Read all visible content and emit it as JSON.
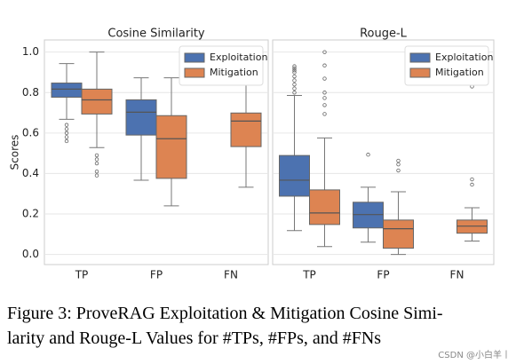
{
  "chart_data": [
    {
      "type": "box",
      "title": "Cosine Similarity",
      "ylabel": "Scores",
      "categories": [
        "TP",
        "FP",
        "FN"
      ],
      "ylim": [
        -0.05,
        1.06
      ],
      "yticks": [
        {
          "value": 0,
          "label": "0.0"
        },
        0.2,
        0.4,
        0.6,
        0.8,
        {
          "value": 1,
          "label": "1.0"
        }
      ],
      "ytick_labels": true,
      "grid": true,
      "legend": "upper right",
      "series": [
        {
          "name": "Exploitation",
          "color": "#4c72b0",
          "boxes": [
            {
              "whislo": 0.668,
              "q1": 0.777,
              "median": 0.817,
              "q3": 0.847,
              "whishi": 0.943,
              "fliers": [
                0.64,
                0.62,
                0.6,
                0.58,
                0.56
              ]
            },
            {
              "whislo": 0.367,
              "q1": 0.59,
              "median": 0.703,
              "q3": 0.764,
              "whishi": 0.873,
              "fliers": []
            },
            null
          ]
        },
        {
          "name": "Mitigation",
          "color": "#dd8452",
          "boxes": [
            {
              "whislo": 0.528,
              "q1": 0.694,
              "median": 0.764,
              "q3": 0.817,
              "whishi": 1.0,
              "fliers": [
                0.49,
                0.47,
                0.45,
                0.41,
                0.39
              ]
            },
            {
              "whislo": 0.24,
              "q1": 0.376,
              "median": 0.572,
              "q3": 0.686,
              "whishi": 0.873,
              "fliers": []
            },
            {
              "whislo": 0.332,
              "q1": 0.533,
              "median": 0.659,
              "q3": 0.699,
              "whishi": 0.86,
              "fliers": []
            }
          ]
        }
      ]
    },
    {
      "type": "box",
      "title": "Rouge-L",
      "categories": [
        "TP",
        "FP",
        "FN"
      ],
      "ylim": [
        -0.05,
        1.06
      ],
      "yticks": [
        0,
        0.2,
        0.4,
        0.6,
        0.8,
        1
      ],
      "ytick_labels": false,
      "grid": true,
      "legend": "upper right",
      "series": [
        {
          "name": "Exploitation",
          "color": "#4c72b0",
          "boxes": [
            {
              "whislo": 0.118,
              "q1": 0.288,
              "median": 0.367,
              "q3": 0.489,
              "whishi": 0.786,
              "fliers": [
                0.93,
                0.92,
                0.91,
                0.9,
                0.88,
                0.86,
                0.84,
                0.82,
                0.8
              ]
            },
            {
              "whislo": 0.061,
              "q1": 0.131,
              "median": 0.197,
              "q3": 0.258,
              "whishi": 0.332,
              "fliers": [
                0.493
              ]
            },
            null
          ]
        },
        {
          "name": "Mitigation",
          "color": "#dd8452",
          "boxes": [
            {
              "whislo": 0.039,
              "q1": 0.148,
              "median": 0.205,
              "q3": 0.319,
              "whishi": 0.576,
              "fliers": [
                1.0,
                0.934,
                0.869,
                0.8,
                0.773,
                0.738,
                0.694
              ]
            },
            {
              "whislo": 0.0,
              "q1": 0.031,
              "median": 0.127,
              "q3": 0.17,
              "whishi": 0.31,
              "fliers": [
                0.463,
                0.445,
                0.415
              ]
            },
            {
              "whislo": 0.066,
              "q1": 0.105,
              "median": 0.14,
              "q3": 0.17,
              "whishi": 0.231,
              "fliers": [
                0.83,
                0.371,
                0.345
              ]
            }
          ]
        }
      ]
    }
  ],
  "caption": [
    "Figure 3: ProveRAG Exploitation & Mitigation Cosine Simi-",
    "larity and Rouge-L Values for #TPs, #FPs, and #FNs"
  ],
  "watermark": "CSDN @小白羊丨"
}
